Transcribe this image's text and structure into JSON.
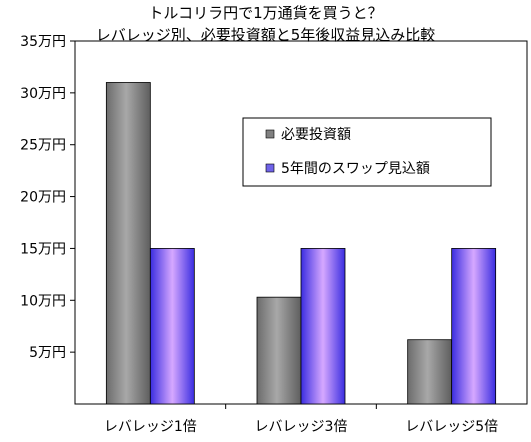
{
  "chart_data": {
    "type": "bar",
    "title": [
      "トルコリラ円で1万通貨を買うと？",
      "レバレッジ別、必要投資額と5年後収益見込み比較"
    ],
    "categories": [
      "レバレッジ1倍",
      "レバレッジ3倍",
      "レバレッジ5倍"
    ],
    "series": [
      {
        "name": "必要投資額",
        "values": [
          31,
          10.3,
          6.2
        ],
        "color": "#808080"
      },
      {
        "name": "5年間のスワップ見込額",
        "values": [
          15,
          15,
          15
        ],
        "color": "#6f63e8"
      }
    ],
    "ylim": [
      0,
      35
    ],
    "yticks": [
      5,
      10,
      15,
      20,
      25,
      30,
      35
    ],
    "ytick_labels": [
      "5万円",
      "10万円",
      "15万円",
      "20万円",
      "25万円",
      "30万円",
      "35万円"
    ],
    "legend_position": "upper-right",
    "grid": false
  }
}
